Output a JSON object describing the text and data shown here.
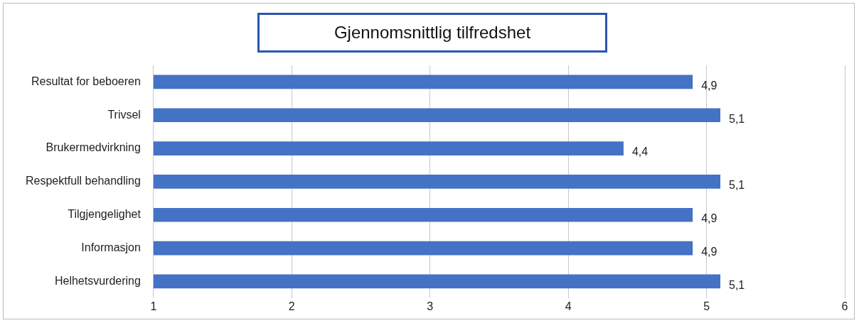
{
  "chart_data": {
    "type": "bar",
    "orientation": "horizontal",
    "title": "Gjennomsnittlig tilfredshet",
    "categories": [
      "Resultat for beboeren",
      "Trivsel",
      "Brukermedvirkning",
      "Respektfull behandling",
      "Tilgjengelighet",
      "Informasjon",
      "Helhetsvurdering"
    ],
    "values": [
      4.9,
      5.1,
      4.4,
      5.1,
      4.9,
      4.9,
      5.1
    ],
    "value_labels": [
      "4,9",
      "5,1",
      "4,4",
      "5,1",
      "4,9",
      "4,9",
      "5,1"
    ],
    "color": "#4472c4",
    "xlim": [
      1,
      6
    ],
    "xticks": [
      1,
      2,
      3,
      4,
      5,
      6
    ],
    "grid": "x",
    "legend": false
  }
}
